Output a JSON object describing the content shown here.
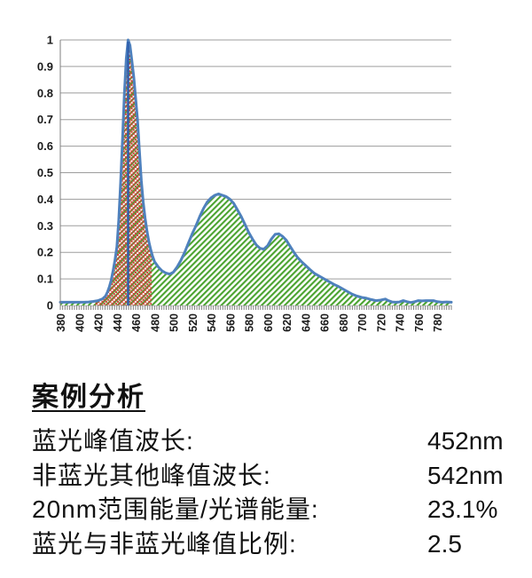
{
  "chart_data": {
    "type": "area",
    "title": "",
    "xlabel": "",
    "ylabel": "",
    "x_unit": "nm",
    "xlim": [
      380,
      795
    ],
    "ylim": [
      0,
      1
    ],
    "grid": true,
    "legend": "none",
    "y_ticks": [
      0,
      0.1,
      0.2,
      0.3,
      0.4,
      0.5,
      0.6,
      0.7,
      0.8,
      0.9,
      1
    ],
    "y_tick_labels": [
      "0",
      "0.1",
      "0.2",
      "0.3",
      "0.4",
      "0.5",
      "0.6",
      "0.7",
      "0.8",
      "0.9",
      "1"
    ],
    "x_tick_labels": [
      "380",
      "400",
      "420",
      "440",
      "460",
      "480",
      "500",
      "520",
      "540",
      "560",
      "580",
      "600",
      "620",
      "640",
      "660",
      "680",
      "700",
      "720",
      "740",
      "760",
      "780"
    ],
    "x_minor_tick_step": 2.5,
    "blue_band_nm": [
      417,
      477
    ],
    "peak_line_nm": 452,
    "series": [
      {
        "name": "normalized-spectral-power",
        "points": [
          [
            380,
            0.012
          ],
          [
            385,
            0.012
          ],
          [
            390,
            0.012
          ],
          [
            395,
            0.012
          ],
          [
            400,
            0.012
          ],
          [
            405,
            0.012
          ],
          [
            410,
            0.013
          ],
          [
            415,
            0.015
          ],
          [
            420,
            0.018
          ],
          [
            425,
            0.025
          ],
          [
            428,
            0.035
          ],
          [
            430,
            0.05
          ],
          [
            432,
            0.07
          ],
          [
            434,
            0.095
          ],
          [
            436,
            0.13
          ],
          [
            438,
            0.17
          ],
          [
            440,
            0.22
          ],
          [
            442,
            0.32
          ],
          [
            444,
            0.46
          ],
          [
            446,
            0.62
          ],
          [
            448,
            0.8
          ],
          [
            450,
            0.93
          ],
          [
            452,
            1.0
          ],
          [
            454,
            0.98
          ],
          [
            456,
            0.92
          ],
          [
            458,
            0.86
          ],
          [
            460,
            0.78
          ],
          [
            462,
            0.7
          ],
          [
            464,
            0.58
          ],
          [
            466,
            0.47
          ],
          [
            468,
            0.39
          ],
          [
            470,
            0.33
          ],
          [
            472,
            0.28
          ],
          [
            474,
            0.24
          ],
          [
            476,
            0.21
          ],
          [
            478,
            0.185
          ],
          [
            480,
            0.165
          ],
          [
            484,
            0.145
          ],
          [
            488,
            0.13
          ],
          [
            492,
            0.122
          ],
          [
            496,
            0.118
          ],
          [
            500,
            0.125
          ],
          [
            504,
            0.145
          ],
          [
            508,
            0.17
          ],
          [
            512,
            0.2
          ],
          [
            516,
            0.235
          ],
          [
            520,
            0.27
          ],
          [
            524,
            0.3
          ],
          [
            528,
            0.335
          ],
          [
            532,
            0.365
          ],
          [
            536,
            0.39
          ],
          [
            540,
            0.405
          ],
          [
            544,
            0.415
          ],
          [
            548,
            0.42
          ],
          [
            552,
            0.415
          ],
          [
            556,
            0.41
          ],
          [
            560,
            0.4
          ],
          [
            564,
            0.385
          ],
          [
            568,
            0.36
          ],
          [
            572,
            0.335
          ],
          [
            576,
            0.305
          ],
          [
            580,
            0.275
          ],
          [
            584,
            0.25
          ],
          [
            588,
            0.228
          ],
          [
            592,
            0.215
          ],
          [
            596,
            0.212
          ],
          [
            600,
            0.225
          ],
          [
            604,
            0.25
          ],
          [
            608,
            0.268
          ],
          [
            612,
            0.27
          ],
          [
            616,
            0.26
          ],
          [
            620,
            0.245
          ],
          [
            624,
            0.222
          ],
          [
            628,
            0.2
          ],
          [
            632,
            0.18
          ],
          [
            636,
            0.165
          ],
          [
            640,
            0.152
          ],
          [
            645,
            0.135
          ],
          [
            650,
            0.12
          ],
          [
            655,
            0.11
          ],
          [
            660,
            0.1
          ],
          [
            665,
            0.09
          ],
          [
            670,
            0.08
          ],
          [
            675,
            0.072
          ],
          [
            680,
            0.062
          ],
          [
            685,
            0.052
          ],
          [
            690,
            0.042
          ],
          [
            695,
            0.035
          ],
          [
            700,
            0.03
          ],
          [
            705,
            0.027
          ],
          [
            710,
            0.022
          ],
          [
            715,
            0.018
          ],
          [
            720,
            0.02
          ],
          [
            725,
            0.024
          ],
          [
            728,
            0.018
          ],
          [
            732,
            0.013
          ],
          [
            736,
            0.012
          ],
          [
            740,
            0.013
          ],
          [
            744,
            0.018
          ],
          [
            748,
            0.014
          ],
          [
            752,
            0.011
          ],
          [
            756,
            0.014
          ],
          [
            760,
            0.018
          ],
          [
            764,
            0.017
          ],
          [
            768,
            0.018
          ],
          [
            772,
            0.018
          ],
          [
            776,
            0.018
          ],
          [
            780,
            0.014
          ],
          [
            785,
            0.012
          ],
          [
            790,
            0.013
          ],
          [
            795,
            0.012
          ]
        ]
      }
    ],
    "colors": {
      "curve": "#4f81bd",
      "hatch_green": "#4aa32f",
      "band_red": "#c8473a",
      "peak_line": "#2f5fae",
      "grid": "#9d9d9d",
      "axis": "#7f7f7f",
      "text": "#1a1a1a"
    }
  },
  "analysis": {
    "title": "案例分析",
    "rows": [
      {
        "label": "蓝光峰值波长:",
        "value": "452nm"
      },
      {
        "label": "非蓝光其他峰值波长:",
        "value": "542nm"
      },
      {
        "label": "20nm范围能量/光谱能量:",
        "value": "23.1%"
      },
      {
        "label": "蓝光与非蓝光峰值比例:",
        "value": "2.5"
      }
    ]
  }
}
